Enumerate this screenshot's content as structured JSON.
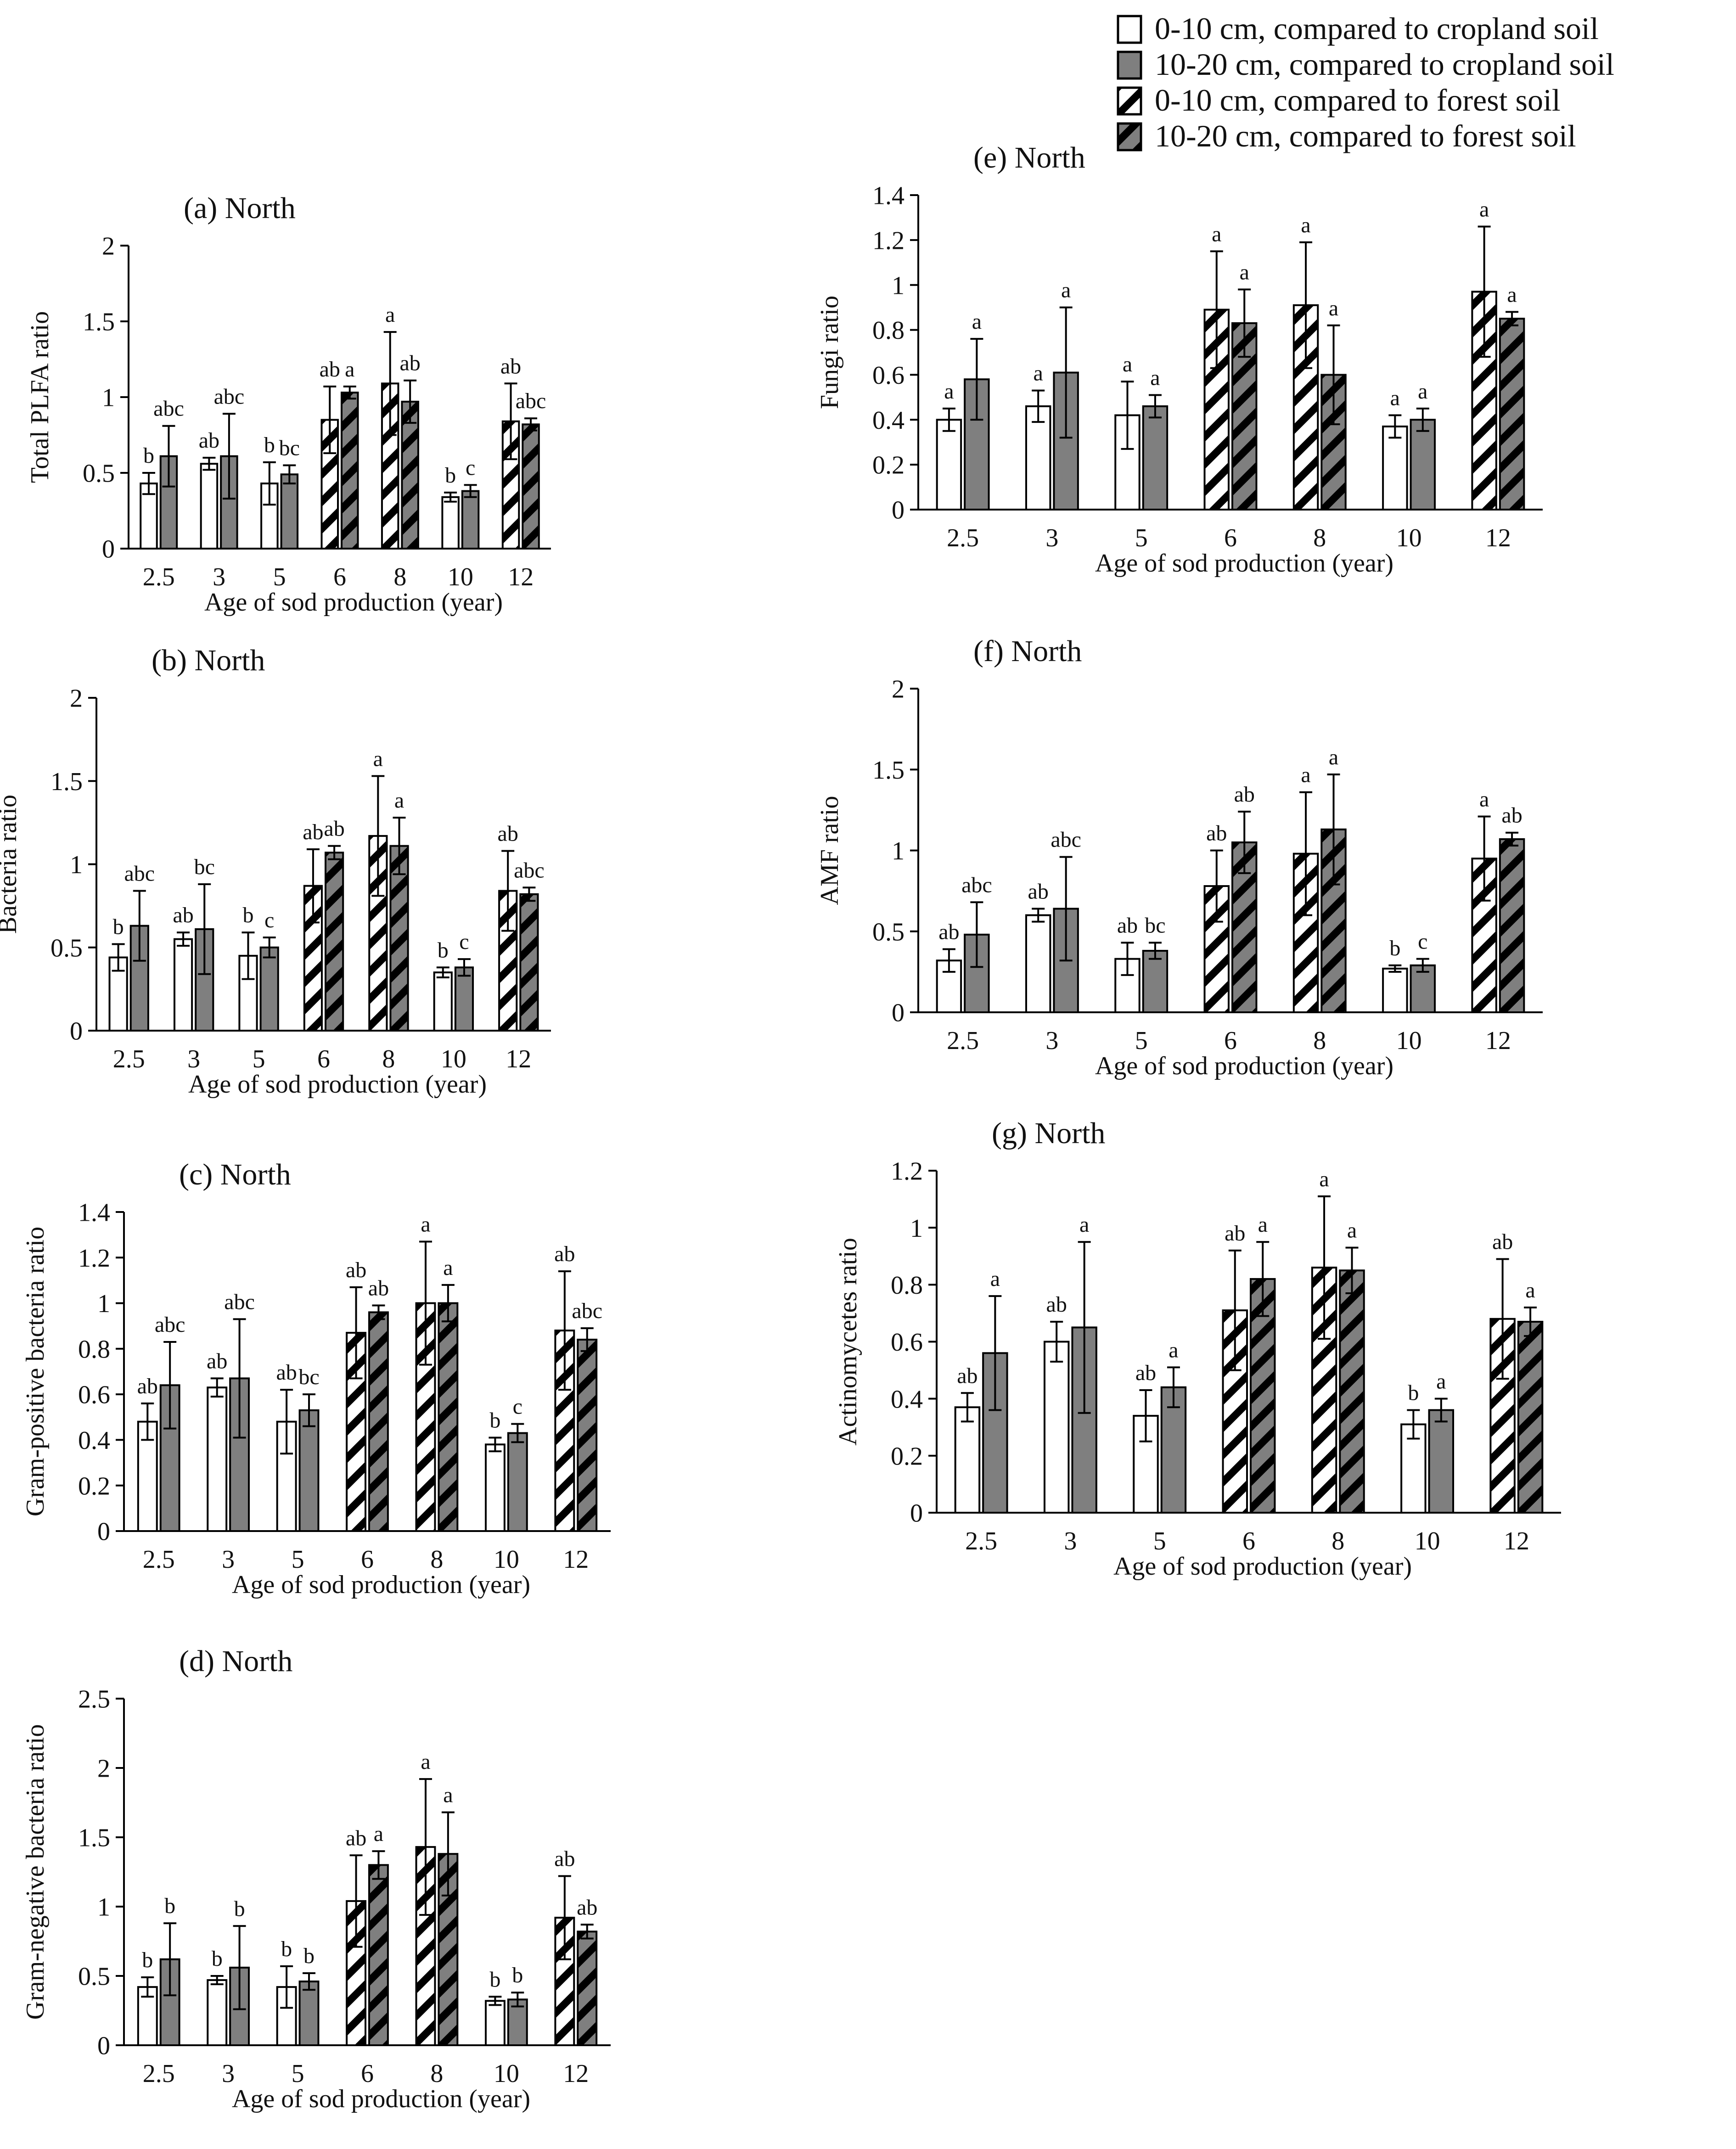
{
  "legend": {
    "entries": [
      {
        "key": "crop_0_10",
        "label": "0-10 cm, compared to cropland soil",
        "fill": "white"
      },
      {
        "key": "crop_10_20",
        "label": "10-20 cm, compared to cropland soil",
        "fill": "gray"
      },
      {
        "key": "forest_0_10",
        "label": "0-10 cm, compared to forest soil",
        "fill": "hatch-white"
      },
      {
        "key": "forest_10_20",
        "label": "10-20 cm, compared to forest soil",
        "fill": "hatch-gray"
      }
    ]
  },
  "colors": {
    "gray": "#7f7f7f",
    "line": "#000000",
    "white": "#ffffff"
  },
  "chart_data": [
    {
      "id": "a",
      "type": "bar",
      "title": "(a) North",
      "ylabel": "Total PLFA ratio",
      "xlabel": "Age of sod production (year)",
      "ylim": [
        0,
        2
      ],
      "yticks": [
        "0",
        "0.5",
        "1",
        "1.5",
        "2"
      ],
      "ytick_values": [
        0,
        0.5,
        1,
        1.5,
        2
      ],
      "categories": [
        "2.5",
        "3",
        "5",
        "6",
        "8",
        "10",
        "12"
      ],
      "groups": [
        {
          "fills": [
            "white",
            "gray"
          ],
          "values": [
            0.43,
            0.61
          ],
          "errors": [
            0.07,
            0.2
          ],
          "letters": [
            "b",
            "abc"
          ]
        },
        {
          "fills": [
            "white",
            "gray"
          ],
          "values": [
            0.56,
            0.61
          ],
          "errors": [
            0.04,
            0.28
          ],
          "letters": [
            "ab",
            "abc"
          ]
        },
        {
          "fills": [
            "white",
            "gray"
          ],
          "values": [
            0.43,
            0.49
          ],
          "errors": [
            0.14,
            0.06
          ],
          "letters": [
            "b",
            "bc"
          ]
        },
        {
          "fills": [
            "hatch-white",
            "hatch-gray"
          ],
          "values": [
            0.85,
            1.03
          ],
          "errors": [
            0.22,
            0.04
          ],
          "letters": [
            "ab",
            "a"
          ]
        },
        {
          "fills": [
            "hatch-white",
            "hatch-gray"
          ],
          "values": [
            1.09,
            0.97
          ],
          "errors": [
            0.34,
            0.14
          ],
          "letters": [
            "a",
            "ab"
          ]
        },
        {
          "fills": [
            "white",
            "gray"
          ],
          "values": [
            0.34,
            0.38
          ],
          "errors": [
            0.03,
            0.04
          ],
          "letters": [
            "b",
            "c"
          ]
        },
        {
          "fills": [
            "hatch-white",
            "hatch-gray"
          ],
          "values": [
            0.84,
            0.82
          ],
          "errors": [
            0.25,
            0.04
          ],
          "letters": [
            "ab",
            "abc"
          ]
        }
      ]
    },
    {
      "id": "b",
      "type": "bar",
      "title": "(b) North",
      "ylabel": "Bacteria ratio",
      "xlabel": "Age of sod production (year)",
      "ylim": [
        0,
        2
      ],
      "yticks": [
        "0",
        "0.5",
        "1",
        "1.5",
        "2"
      ],
      "ytick_values": [
        0,
        0.5,
        1,
        1.5,
        2
      ],
      "categories": [
        "2.5",
        "3",
        "5",
        "6",
        "8",
        "10",
        "12"
      ],
      "groups": [
        {
          "fills": [
            "white",
            "gray"
          ],
          "values": [
            0.44,
            0.63
          ],
          "errors": [
            0.08,
            0.21
          ],
          "letters": [
            "b",
            "abc"
          ]
        },
        {
          "fills": [
            "white",
            "gray"
          ],
          "values": [
            0.55,
            0.61
          ],
          "errors": [
            0.04,
            0.27
          ],
          "letters": [
            "ab",
            "bc"
          ]
        },
        {
          "fills": [
            "white",
            "gray"
          ],
          "values": [
            0.45,
            0.5
          ],
          "errors": [
            0.14,
            0.06
          ],
          "letters": [
            "b",
            "c"
          ]
        },
        {
          "fills": [
            "hatch-white",
            "hatch-gray"
          ],
          "values": [
            0.87,
            1.07
          ],
          "errors": [
            0.22,
            0.04
          ],
          "letters": [
            "ab",
            "ab"
          ]
        },
        {
          "fills": [
            "hatch-white",
            "hatch-gray"
          ],
          "values": [
            1.17,
            1.11
          ],
          "errors": [
            0.36,
            0.17
          ],
          "letters": [
            "a",
            "a"
          ]
        },
        {
          "fills": [
            "white",
            "gray"
          ],
          "values": [
            0.35,
            0.38
          ],
          "errors": [
            0.03,
            0.05
          ],
          "letters": [
            "b",
            "c"
          ]
        },
        {
          "fills": [
            "hatch-white",
            "hatch-gray"
          ],
          "values": [
            0.84,
            0.82
          ],
          "errors": [
            0.24,
            0.04
          ],
          "letters": [
            "ab",
            "abc"
          ]
        }
      ]
    },
    {
      "id": "c",
      "type": "bar",
      "title": "(c) North",
      "ylabel": "Gram-positive bacteria ratio",
      "xlabel": "Age of sod production (year)",
      "ylim": [
        0,
        1.4
      ],
      "yticks": [
        "0",
        "0.2",
        "0.4",
        "0.6",
        "0.8",
        "1",
        "1.2",
        "1.4"
      ],
      "ytick_values": [
        0,
        0.2,
        0.4,
        0.6,
        0.8,
        1,
        1.2,
        1.4
      ],
      "categories": [
        "2.5",
        "3",
        "5",
        "6",
        "8",
        "10",
        "12"
      ],
      "groups": [
        {
          "fills": [
            "white",
            "gray"
          ],
          "values": [
            0.48,
            0.64
          ],
          "errors": [
            0.08,
            0.19
          ],
          "letters": [
            "ab",
            "abc"
          ]
        },
        {
          "fills": [
            "white",
            "gray"
          ],
          "values": [
            0.63,
            0.67
          ],
          "errors": [
            0.04,
            0.26
          ],
          "letters": [
            "ab",
            "abc"
          ]
        },
        {
          "fills": [
            "white",
            "gray"
          ],
          "values": [
            0.48,
            0.53
          ],
          "errors": [
            0.14,
            0.07
          ],
          "letters": [
            "ab",
            "bc"
          ]
        },
        {
          "fills": [
            "hatch-white",
            "hatch-gray"
          ],
          "values": [
            0.87,
            0.96
          ],
          "errors": [
            0.2,
            0.03
          ],
          "letters": [
            "ab",
            "ab"
          ]
        },
        {
          "fills": [
            "hatch-white",
            "hatch-gray"
          ],
          "values": [
            1.0,
            1.0
          ],
          "errors": [
            0.27,
            0.08
          ],
          "letters": [
            "a",
            "a"
          ]
        },
        {
          "fills": [
            "white",
            "gray"
          ],
          "values": [
            0.38,
            0.43
          ],
          "errors": [
            0.03,
            0.04
          ],
          "letters": [
            "b",
            "c"
          ]
        },
        {
          "fills": [
            "hatch-white",
            "hatch-gray"
          ],
          "values": [
            0.88,
            0.84
          ],
          "errors": [
            0.26,
            0.05
          ],
          "letters": [
            "ab",
            "abc"
          ]
        }
      ]
    },
    {
      "id": "d",
      "type": "bar",
      "title": "(d) North",
      "ylabel": "Gram-negative bacteria ratio",
      "xlabel": "Age of sod production (year)",
      "ylim": [
        0,
        2.5
      ],
      "yticks": [
        "0",
        "0.5",
        "1",
        "1.5",
        "2",
        "2.5"
      ],
      "ytick_values": [
        0,
        0.5,
        1,
        1.5,
        2,
        2.5
      ],
      "categories": [
        "2.5",
        "3",
        "5",
        "6",
        "8",
        "10",
        "12"
      ],
      "groups": [
        {
          "fills": [
            "white",
            "gray"
          ],
          "values": [
            0.42,
            0.62
          ],
          "errors": [
            0.07,
            0.26
          ],
          "letters": [
            "b",
            "b"
          ]
        },
        {
          "fills": [
            "white",
            "gray"
          ],
          "values": [
            0.47,
            0.56
          ],
          "errors": [
            0.03,
            0.3
          ],
          "letters": [
            "b",
            "b"
          ]
        },
        {
          "fills": [
            "white",
            "gray"
          ],
          "values": [
            0.42,
            0.46
          ],
          "errors": [
            0.15,
            0.06
          ],
          "letters": [
            "b",
            "b"
          ]
        },
        {
          "fills": [
            "hatch-white",
            "hatch-gray"
          ],
          "values": [
            1.04,
            1.3
          ],
          "errors": [
            0.33,
            0.1
          ],
          "letters": [
            "ab",
            "a"
          ]
        },
        {
          "fills": [
            "hatch-white",
            "hatch-gray"
          ],
          "values": [
            1.43,
            1.38
          ],
          "errors": [
            0.49,
            0.3
          ],
          "letters": [
            "a",
            "a"
          ]
        },
        {
          "fills": [
            "white",
            "gray"
          ],
          "values": [
            0.32,
            0.33
          ],
          "errors": [
            0.03,
            0.05
          ],
          "letters": [
            "b",
            "b"
          ]
        },
        {
          "fills": [
            "hatch-white",
            "hatch-gray"
          ],
          "values": [
            0.92,
            0.82
          ],
          "errors": [
            0.3,
            0.05
          ],
          "letters": [
            "ab",
            "ab"
          ]
        }
      ]
    },
    {
      "id": "e",
      "type": "bar",
      "title": "(e) North",
      "ylabel": "Fungi ratio",
      "xlabel": "Age of sod production (year)",
      "ylim": [
        0,
        1.4
      ],
      "yticks": [
        "0",
        "0.2",
        "0.4",
        "0.6",
        "0.8",
        "1",
        "1.2",
        "1.4"
      ],
      "ytick_values": [
        0,
        0.2,
        0.4,
        0.6,
        0.8,
        1,
        1.2,
        1.4
      ],
      "categories": [
        "2.5",
        "3",
        "5",
        "6",
        "8",
        "10",
        "12"
      ],
      "groups": [
        {
          "fills": [
            "white",
            "gray"
          ],
          "values": [
            0.4,
            0.58
          ],
          "errors": [
            0.05,
            0.18
          ],
          "letters": [
            "a",
            "a"
          ]
        },
        {
          "fills": [
            "white",
            "gray"
          ],
          "values": [
            0.46,
            0.61
          ],
          "errors": [
            0.07,
            0.29
          ],
          "letters": [
            "a",
            "a"
          ]
        },
        {
          "fills": [
            "white",
            "gray"
          ],
          "values": [
            0.42,
            0.46
          ],
          "errors": [
            0.15,
            0.05
          ],
          "letters": [
            "a",
            "a"
          ]
        },
        {
          "fills": [
            "hatch-white",
            "hatch-gray"
          ],
          "values": [
            0.89,
            0.83
          ],
          "errors": [
            0.26,
            0.15
          ],
          "letters": [
            "a",
            "a"
          ]
        },
        {
          "fills": [
            "hatch-white",
            "hatch-gray"
          ],
          "values": [
            0.91,
            0.6
          ],
          "errors": [
            0.28,
            0.22
          ],
          "letters": [
            "a",
            "a"
          ]
        },
        {
          "fills": [
            "white",
            "gray"
          ],
          "values": [
            0.37,
            0.4
          ],
          "errors": [
            0.05,
            0.05
          ],
          "letters": [
            "a",
            "a"
          ]
        },
        {
          "fills": [
            "hatch-white",
            "hatch-gray"
          ],
          "values": [
            0.97,
            0.85
          ],
          "errors": [
            0.29,
            0.03
          ],
          "letters": [
            "a",
            "a"
          ]
        }
      ]
    },
    {
      "id": "f",
      "type": "bar",
      "title": "(f) North",
      "ylabel": "AMF ratio",
      "xlabel": "Age of sod production (year)",
      "ylim": [
        0,
        2
      ],
      "yticks": [
        "0",
        "0.5",
        "1",
        "1.5",
        "2"
      ],
      "ytick_values": [
        0,
        0.5,
        1,
        1.5,
        2
      ],
      "categories": [
        "2.5",
        "3",
        "5",
        "6",
        "8",
        "10",
        "12"
      ],
      "groups": [
        {
          "fills": [
            "white",
            "gray"
          ],
          "values": [
            0.32,
            0.48
          ],
          "errors": [
            0.07,
            0.2
          ],
          "letters": [
            "ab",
            "abc"
          ]
        },
        {
          "fills": [
            "white",
            "gray"
          ],
          "values": [
            0.6,
            0.64
          ],
          "errors": [
            0.04,
            0.32
          ],
          "letters": [
            "ab",
            "abc"
          ]
        },
        {
          "fills": [
            "white",
            "gray"
          ],
          "values": [
            0.33,
            0.38
          ],
          "errors": [
            0.1,
            0.05
          ],
          "letters": [
            "ab",
            "bc"
          ]
        },
        {
          "fills": [
            "hatch-white",
            "hatch-gray"
          ],
          "values": [
            0.78,
            1.05
          ],
          "errors": [
            0.22,
            0.19
          ],
          "letters": [
            "ab",
            "ab"
          ]
        },
        {
          "fills": [
            "hatch-white",
            "hatch-gray"
          ],
          "values": [
            0.98,
            1.13
          ],
          "errors": [
            0.38,
            0.34
          ],
          "letters": [
            "a",
            "a"
          ]
        },
        {
          "fills": [
            "white",
            "gray"
          ],
          "values": [
            0.27,
            0.29
          ],
          "errors": [
            0.02,
            0.04
          ],
          "letters": [
            "b",
            "c"
          ]
        },
        {
          "fills": [
            "hatch-white",
            "hatch-gray"
          ],
          "values": [
            0.95,
            1.07
          ],
          "errors": [
            0.26,
            0.04
          ],
          "letters": [
            "a",
            "ab"
          ]
        }
      ]
    },
    {
      "id": "g",
      "type": "bar",
      "title": "(g) North",
      "ylabel": "Actinomycetes ratio",
      "xlabel": "Age of sod production (year)",
      "ylim": [
        0,
        1.2
      ],
      "yticks": [
        "0",
        "0.2",
        "0.4",
        "0.6",
        "0.8",
        "1",
        "1.2"
      ],
      "ytick_values": [
        0,
        0.2,
        0.4,
        0.6,
        0.8,
        1,
        1.2
      ],
      "categories": [
        "2.5",
        "3",
        "5",
        "6",
        "8",
        "10",
        "12"
      ],
      "groups": [
        {
          "fills": [
            "white",
            "gray"
          ],
          "values": [
            0.37,
            0.56
          ],
          "errors": [
            0.05,
            0.2
          ],
          "letters": [
            "ab",
            "a"
          ]
        },
        {
          "fills": [
            "white",
            "gray"
          ],
          "values": [
            0.6,
            0.65
          ],
          "errors": [
            0.07,
            0.3
          ],
          "letters": [
            "ab",
            "a"
          ]
        },
        {
          "fills": [
            "white",
            "gray"
          ],
          "values": [
            0.34,
            0.44
          ],
          "errors": [
            0.09,
            0.07
          ],
          "letters": [
            "ab",
            "a"
          ]
        },
        {
          "fills": [
            "hatch-white",
            "hatch-gray"
          ],
          "values": [
            0.71,
            0.82
          ],
          "errors": [
            0.21,
            0.13
          ],
          "letters": [
            "ab",
            "a"
          ]
        },
        {
          "fills": [
            "hatch-white",
            "hatch-gray"
          ],
          "values": [
            0.86,
            0.85
          ],
          "errors": [
            0.25,
            0.08
          ],
          "letters": [
            "a",
            "a"
          ]
        },
        {
          "fills": [
            "white",
            "gray"
          ],
          "values": [
            0.31,
            0.36
          ],
          "errors": [
            0.05,
            0.04
          ],
          "letters": [
            "b",
            "a"
          ]
        },
        {
          "fills": [
            "hatch-white",
            "hatch-gray"
          ],
          "values": [
            0.68,
            0.67
          ],
          "errors": [
            0.21,
            0.05
          ],
          "letters": [
            "ab",
            "a"
          ]
        }
      ]
    }
  ]
}
